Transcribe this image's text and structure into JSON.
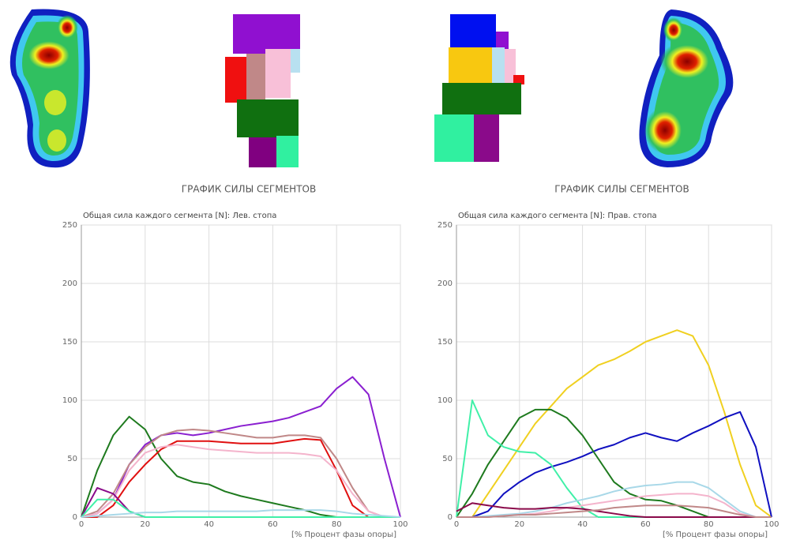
{
  "chart_data": [
    {
      "type": "line",
      "title": "ГРАФИК СИЛЫ СЕГМЕНТОВ",
      "subtitle": "Общая сила каждого сегмента [N]: Лев. стопа",
      "x_label": "[% Процент фазы опоры]",
      "x": [
        0,
        5,
        10,
        15,
        20,
        25,
        30,
        35,
        40,
        45,
        50,
        55,
        60,
        65,
        70,
        75,
        80,
        85,
        90,
        95,
        100
      ],
      "xlim": [
        0,
        100
      ],
      "xticks": [
        0,
        20,
        40,
        60,
        80,
        100
      ],
      "ylim": [
        0,
        250
      ],
      "yticks": [
        0,
        50,
        100,
        150,
        200,
        250
      ],
      "grid": true,
      "series": [
        {
          "color": "#8a1fd0",
          "values": [
            0,
            3,
            15,
            45,
            62,
            70,
            72,
            70,
            72,
            75,
            78,
            80,
            82,
            85,
            90,
            95,
            110,
            120,
            105,
            50,
            0
          ]
        },
        {
          "color": "#1e7a1e",
          "values": [
            0,
            40,
            70,
            86,
            75,
            50,
            35,
            30,
            28,
            22,
            18,
            15,
            12,
            9,
            6,
            2,
            0,
            0,
            0,
            0,
            0
          ]
        },
        {
          "color": "#e01010",
          "values": [
            0,
            0,
            10,
            30,
            45,
            58,
            65,
            65,
            65,
            64,
            63,
            63,
            63,
            65,
            67,
            66,
            40,
            10,
            0,
            0,
            0
          ]
        },
        {
          "color": "#c08888",
          "values": [
            0,
            5,
            20,
            45,
            60,
            70,
            74,
            75,
            74,
            72,
            70,
            68,
            68,
            70,
            70,
            68,
            50,
            25,
            5,
            0,
            0
          ]
        },
        {
          "color": "#f4b4cc",
          "values": [
            0,
            3,
            15,
            40,
            55,
            60,
            62,
            60,
            58,
            57,
            56,
            55,
            55,
            55,
            54,
            52,
            40,
            20,
            5,
            0,
            0
          ]
        },
        {
          "color": "#8a0a8a",
          "values": [
            0,
            25,
            20,
            5,
            0,
            0,
            0,
            0,
            0,
            0,
            0,
            0,
            0,
            0,
            0,
            0,
            0,
            0,
            0,
            0,
            0
          ]
        },
        {
          "color": "#40f0a8",
          "values": [
            0,
            15,
            15,
            5,
            0,
            0,
            0,
            0,
            0,
            0,
            0,
            0,
            0,
            0,
            0,
            0,
            0,
            0,
            0,
            0,
            0
          ]
        },
        {
          "color": "#a8d8e8",
          "values": [
            0,
            1,
            2,
            3,
            4,
            4,
            5,
            5,
            5,
            5,
            5,
            5,
            6,
            6,
            6,
            6,
            5,
            3,
            2,
            1,
            0
          ]
        }
      ]
    },
    {
      "type": "line",
      "title": "ГРАФИК СИЛЫ СЕГМЕНТОВ",
      "subtitle": "Общая сила каждого сегмента [N]: Прав. стопа",
      "x_label": "[% Процент фазы опоры]",
      "x": [
        0,
        5,
        10,
        15,
        20,
        25,
        30,
        35,
        40,
        45,
        50,
        55,
        60,
        65,
        70,
        75,
        80,
        85,
        90,
        95,
        100
      ],
      "xlim": [
        0,
        100
      ],
      "xticks": [
        0,
        20,
        40,
        60,
        80,
        100
      ],
      "ylim": [
        0,
        250
      ],
      "yticks": [
        0,
        50,
        100,
        150,
        200,
        250
      ],
      "grid": true,
      "series": [
        {
          "color": "#f0d020",
          "values": [
            0,
            0,
            20,
            40,
            60,
            80,
            95,
            110,
            120,
            130,
            135,
            142,
            150,
            155,
            160,
            155,
            130,
            90,
            45,
            10,
            0
          ]
        },
        {
          "color": "#1010c0",
          "values": [
            0,
            0,
            5,
            20,
            30,
            38,
            43,
            47,
            52,
            58,
            62,
            68,
            72,
            68,
            65,
            72,
            78,
            85,
            90,
            60,
            0
          ]
        },
        {
          "color": "#1e7a1e",
          "values": [
            0,
            20,
            45,
            65,
            85,
            92,
            92,
            85,
            70,
            50,
            30,
            20,
            15,
            14,
            10,
            5,
            0,
            0,
            0,
            0,
            0
          ]
        },
        {
          "color": "#40f0a8",
          "values": [
            0,
            100,
            70,
            60,
            56,
            55,
            45,
            25,
            8,
            0,
            0,
            0,
            0,
            0,
            0,
            0,
            0,
            0,
            0,
            0,
            0
          ]
        },
        {
          "color": "#a8d8e8",
          "values": [
            0,
            0,
            1,
            2,
            3,
            5,
            8,
            12,
            15,
            18,
            22,
            25,
            27,
            28,
            30,
            30,
            25,
            15,
            5,
            0,
            0
          ]
        },
        {
          "color": "#f4b4cc",
          "values": [
            0,
            0,
            0,
            1,
            2,
            3,
            5,
            8,
            10,
            12,
            14,
            16,
            18,
            19,
            20,
            20,
            18,
            12,
            3,
            0,
            0
          ]
        },
        {
          "color": "#8a0a4a",
          "values": [
            5,
            12,
            10,
            8,
            7,
            7,
            8,
            8,
            7,
            5,
            3,
            1,
            0,
            0,
            0,
            0,
            0,
            0,
            0,
            0,
            0
          ]
        },
        {
          "color": "#c08888",
          "values": [
            0,
            0,
            0,
            1,
            2,
            2,
            3,
            4,
            5,
            6,
            8,
            9,
            10,
            10,
            10,
            9,
            8,
            5,
            2,
            0,
            0
          ]
        }
      ]
    }
  ]
}
